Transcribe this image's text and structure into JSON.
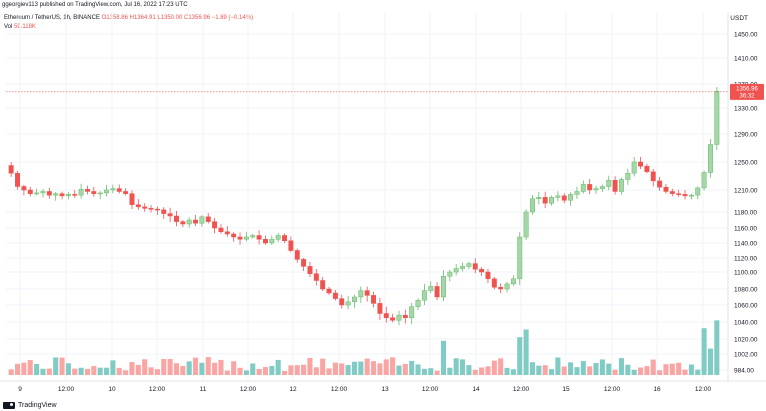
{
  "header": {
    "publisher_text": "ggeorgiev113 published on TradingView.com, Jul 16, 2022 17:23 UTC"
  },
  "legend": {
    "symbol": "Ethereum / TetherUS, 1h, BINANCE",
    "ohlc": "O1358.86  H1364.91  L1350.00  C1356.96  −1.89 (−0.14%)",
    "volume_label": "Vol",
    "volume_value": "59.118K"
  },
  "price_axis": {
    "currency": "USDT",
    "ticks": [
      "1450.00",
      "1410.00",
      "1370.00",
      "1330.00",
      "1290.00",
      "1250.00",
      "1210.00",
      "1180.00",
      "1160.00",
      "1140.00",
      "1120.00",
      "1100.00",
      "1080.00",
      "1060.00",
      "1040.00",
      "1020.00",
      "1002.00",
      "984.00"
    ],
    "current_price": "1356.96",
    "countdown": "36:32"
  },
  "time_axis": {
    "ticks": [
      "9",
      "12:00",
      "10",
      "12:00",
      "11",
      "12:00",
      "12",
      "12:00",
      "13",
      "12:00",
      "14",
      "12:00",
      "15",
      "12:00",
      "16",
      "12:00"
    ]
  },
  "footer": {
    "brand": "TradingView"
  },
  "colors": {
    "up": "#a5d6a7",
    "up_border": "#66bb6a",
    "down": "#ef5350",
    "vol_up": "#80cbc4",
    "vol_down": "#f8a5a3",
    "grid": "#f0f3fa"
  },
  "chart_data": {
    "type": "candlestick",
    "ohlc_close": [
      1234,
      1215,
      1210,
      1205,
      1206,
      1208,
      1203,
      1205,
      1202,
      1204,
      1203,
      1211,
      1208,
      1205,
      1206,
      1210,
      1212,
      1208,
      1205,
      1190,
      1187,
      1185,
      1184,
      1183,
      1178,
      1175,
      1168,
      1165,
      1170,
      1166,
      1174,
      1168,
      1160,
      1155,
      1152,
      1148,
      1145,
      1148,
      1150,
      1145,
      1140,
      1145,
      1150,
      1143,
      1130,
      1118,
      1108,
      1098,
      1090,
      1080,
      1075,
      1068,
      1060,
      1064,
      1070,
      1078,
      1072,
      1062,
      1050,
      1045,
      1042,
      1048,
      1045,
      1058,
      1066,
      1078,
      1083,
      1070,
      1095,
      1100,
      1105,
      1108,
      1112,
      1104,
      1100,
      1092,
      1082,
      1080,
      1086,
      1092,
      1148,
      1180,
      1198,
      1200,
      1192,
      1200,
      1202,
      1196,
      1204,
      1208,
      1218,
      1210,
      1212,
      1215,
      1224,
      1208,
      1225,
      1234,
      1250,
      1244,
      1236,
      1223,
      1214,
      1208,
      1205,
      1204,
      1202,
      1203,
      1213,
      1235,
      1275,
      1358
    ],
    "note": "Approximate hourly closes read from the candles, in USDT"
  }
}
